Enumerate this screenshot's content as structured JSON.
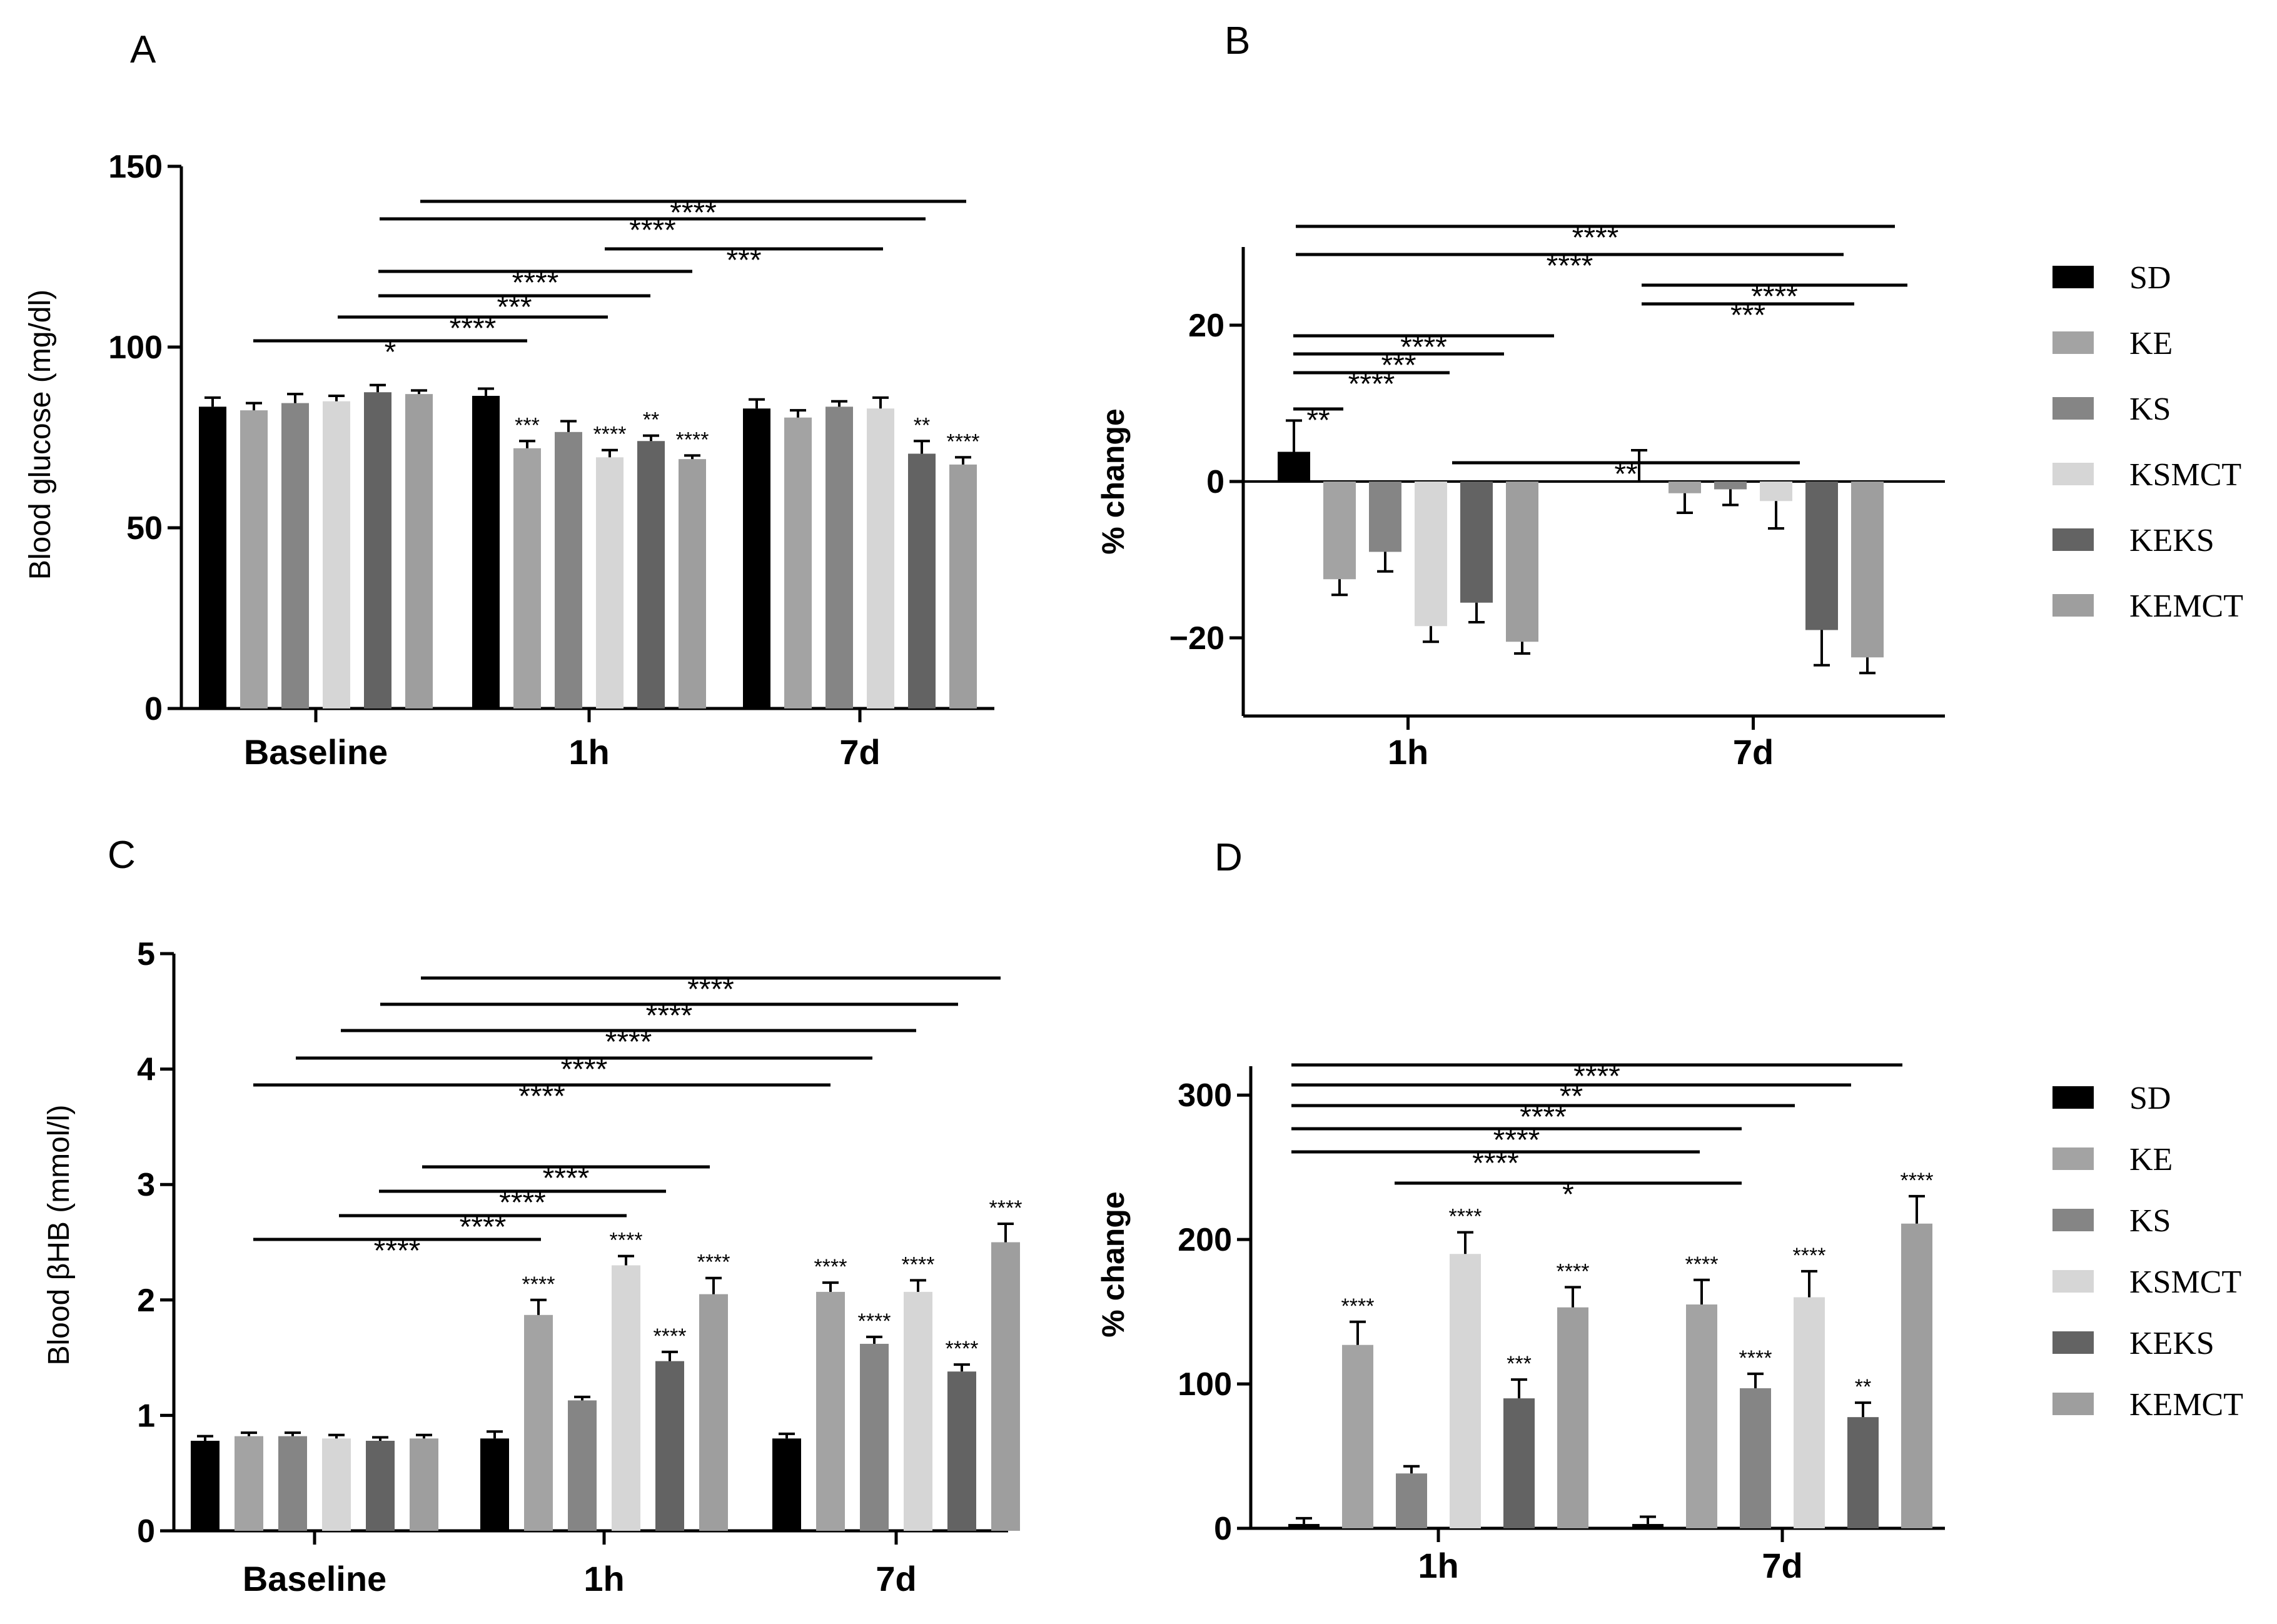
{
  "groups": [
    {
      "name": "SD",
      "color": "#000000"
    },
    {
      "name": "KE",
      "color": "#a3a3a3"
    },
    {
      "name": "KS",
      "color": "#858585"
    },
    {
      "name": "KSMCT",
      "color": "#d6d6d6"
    },
    {
      "name": "KEKS",
      "color": "#636363"
    },
    {
      "name": "KEMCT",
      "color": "#9e9e9e"
    }
  ],
  "chart_data": [
    {
      "panel": "A",
      "type": "bar",
      "ylabel": "Blood glucose (mg/dl)",
      "xlabel": "",
      "ylim": [
        0,
        150
      ],
      "yticks": [
        "0",
        "50",
        "100",
        "150"
      ],
      "categories": [
        "Baseline",
        "1h",
        "7d"
      ],
      "series": [
        {
          "name": "SD",
          "values": [
            83.5,
            86.5,
            83.0
          ],
          "errors": [
            2.5,
            2.0,
            2.5
          ],
          "stars": [
            "",
            "",
            ""
          ]
        },
        {
          "name": "KE",
          "values": [
            82.5,
            72.0,
            80.5
          ],
          "errors": [
            2.0,
            2.0,
            2.0
          ],
          "stars": [
            "",
            "***",
            ""
          ]
        },
        {
          "name": "KS",
          "values": [
            84.5,
            76.5,
            83.5
          ],
          "errors": [
            2.5,
            3.0,
            1.5
          ],
          "stars": [
            "",
            "",
            ""
          ]
        },
        {
          "name": "KSMCT",
          "values": [
            85.0,
            69.5,
            83.0
          ],
          "errors": [
            1.5,
            2.0,
            3.0
          ],
          "stars": [
            "",
            "****",
            ""
          ]
        },
        {
          "name": "KEKS",
          "values": [
            87.5,
            74.0,
            70.5
          ],
          "errors": [
            2.0,
            1.5,
            3.5
          ],
          "stars": [
            "",
            "**",
            "**"
          ]
        },
        {
          "name": "KEMCT",
          "values": [
            87.0,
            69.0,
            67.5
          ],
          "errors": [
            1.0,
            1.0,
            2.0
          ],
          "stars": [
            "",
            "****",
            "****"
          ]
        }
      ],
      "comparisons": [
        {
          "from": [
            0,
            5
          ],
          "to": [
            2,
            5
          ],
          "label": "****"
        },
        {
          "from": [
            0,
            4
          ],
          "to": [
            2,
            4
          ],
          "label": "****"
        },
        {
          "from": [
            1,
            1
          ],
          "to": [
            2,
            3
          ],
          "label": "***"
        },
        {
          "from": [
            0,
            4
          ],
          "to": [
            1,
            5
          ],
          "label": "****"
        },
        {
          "from": [
            0,
            3
          ],
          "to": [
            1,
            4
          ],
          "label": "***"
        },
        {
          "from": [
            0,
            2
          ],
          "to": [
            1,
            3
          ],
          "label": "****"
        },
        {
          "from": [
            0,
            1
          ],
          "to": [
            1,
            1
          ],
          "label": "*"
        }
      ]
    },
    {
      "panel": "B",
      "type": "bar",
      "ylabel": "% change",
      "xlabel": "",
      "ylim": [
        -30,
        30
      ],
      "yticks": [
        "−20",
        "0",
        "20"
      ],
      "categories": [
        "1h",
        "7d"
      ],
      "series": [
        {
          "name": "SD",
          "values": [
            3.8,
            0.0
          ],
          "errors": [
            4.0,
            4.0
          ]
        },
        {
          "name": "KE",
          "values": [
            -12.5,
            -1.5
          ],
          "errors": [
            2.0,
            2.5
          ]
        },
        {
          "name": "KS",
          "values": [
            -9.0,
            -1.0
          ],
          "errors": [
            2.5,
            2.0
          ]
        },
        {
          "name": "KSMCT",
          "values": [
            -18.5,
            -2.5
          ],
          "errors": [
            2.0,
            3.5
          ]
        },
        {
          "name": "KEKS",
          "values": [
            -15.5,
            -19.0
          ],
          "errors": [
            2.5,
            4.5
          ]
        },
        {
          "name": "KEMCT",
          "values": [
            -20.5,
            -22.5
          ],
          "errors": [
            1.5,
            2.0
          ]
        }
      ],
      "comparisons": [
        {
          "from": [
            0,
            0
          ],
          "to": [
            1,
            5
          ],
          "label": "****"
        },
        {
          "from": [
            0,
            0
          ],
          "to": [
            1,
            4
          ],
          "label": "****"
        },
        {
          "from": [
            1,
            0
          ],
          "to": [
            1,
            5
          ],
          "label": "****"
        },
        {
          "from": [
            1,
            0
          ],
          "to": [
            1,
            4
          ],
          "label": "***"
        },
        {
          "from": [
            0,
            0
          ],
          "to": [
            0,
            5
          ],
          "label": "****"
        },
        {
          "from": [
            0,
            0
          ],
          "to": [
            0,
            4
          ],
          "label": "***"
        },
        {
          "from": [
            0,
            0
          ],
          "to": [
            0,
            3
          ],
          "label": "****"
        },
        {
          "from": [
            0,
            0
          ],
          "to": [
            0,
            1
          ],
          "label": "**"
        },
        {
          "from": [
            0,
            3
          ],
          "to": [
            1,
            3
          ],
          "label": "**"
        }
      ]
    },
    {
      "panel": "C",
      "type": "bar",
      "ylabel": "Blood βHB (mmol/l)",
      "xlabel": "",
      "ylim": [
        0,
        5
      ],
      "yticks": [
        "0",
        "1",
        "2",
        "3",
        "4",
        "5"
      ],
      "categories": [
        "Baseline",
        "1h",
        "7d"
      ],
      "series": [
        {
          "name": "SD",
          "values": [
            0.78,
            0.8,
            0.8
          ],
          "errors": [
            0.04,
            0.06,
            0.04
          ],
          "stars": [
            "",
            "",
            ""
          ]
        },
        {
          "name": "KE",
          "values": [
            0.82,
            1.87,
            2.07
          ],
          "errors": [
            0.03,
            0.13,
            0.08
          ],
          "stars": [
            "",
            "****",
            "****"
          ]
        },
        {
          "name": "KS",
          "values": [
            0.82,
            1.13,
            1.62
          ],
          "errors": [
            0.03,
            0.03,
            0.06
          ],
          "stars": [
            "",
            "",
            "****"
          ]
        },
        {
          "name": "KSMCT",
          "values": [
            0.8,
            2.3,
            2.07
          ],
          "errors": [
            0.03,
            0.08,
            0.1
          ],
          "stars": [
            "",
            "****",
            "****"
          ]
        },
        {
          "name": "KEKS",
          "values": [
            0.78,
            1.47,
            1.38
          ],
          "errors": [
            0.03,
            0.08,
            0.06
          ],
          "stars": [
            "",
            "****",
            "****"
          ]
        },
        {
          "name": "KEMCT",
          "values": [
            0.8,
            2.05,
            2.5
          ],
          "errors": [
            0.03,
            0.14,
            0.16
          ],
          "stars": [
            "",
            "****",
            "****"
          ]
        }
      ],
      "comparisons": [
        {
          "from": [
            0,
            5
          ],
          "to": [
            2,
            5
          ],
          "label": "****"
        },
        {
          "from": [
            0,
            4
          ],
          "to": [
            2,
            4
          ],
          "label": "****"
        },
        {
          "from": [
            0,
            3
          ],
          "to": [
            2,
            3
          ],
          "label": "****"
        },
        {
          "from": [
            0,
            2
          ],
          "to": [
            2,
            2
          ],
          "label": "****"
        },
        {
          "from": [
            0,
            1
          ],
          "to": [
            2,
            1
          ],
          "label": "****"
        },
        {
          "from": [
            0,
            5
          ],
          "to": [
            1,
            5
          ],
          "label": "****"
        },
        {
          "from": [
            0,
            4
          ],
          "to": [
            1,
            4
          ],
          "label": "****"
        },
        {
          "from": [
            0,
            3
          ],
          "to": [
            1,
            3
          ],
          "label": "****"
        },
        {
          "from": [
            0,
            1
          ],
          "to": [
            1,
            1
          ],
          "label": "****"
        }
      ]
    },
    {
      "panel": "D",
      "type": "bar",
      "ylabel": "% change",
      "xlabel": "",
      "ylim": [
        0,
        320
      ],
      "yticks": [
        "0",
        "100",
        "200",
        "300"
      ],
      "categories": [
        "1h",
        "7d"
      ],
      "series": [
        {
          "name": "SD",
          "values": [
            3,
            3
          ],
          "errors": [
            4,
            5
          ],
          "stars": [
            "",
            ""
          ]
        },
        {
          "name": "KE",
          "values": [
            127,
            155
          ],
          "errors": [
            16,
            17
          ],
          "stars": [
            "****",
            "****"
          ]
        },
        {
          "name": "KS",
          "values": [
            38,
            97
          ],
          "errors": [
            5,
            10
          ],
          "stars": [
            "",
            "****"
          ]
        },
        {
          "name": "KSMCT",
          "values": [
            190,
            160
          ],
          "errors": [
            15,
            18
          ],
          "stars": [
            "****",
            "****"
          ]
        },
        {
          "name": "KEKS",
          "values": [
            90,
            77
          ],
          "errors": [
            13,
            10
          ],
          "stars": [
            "***",
            "**"
          ]
        },
        {
          "name": "KEMCT",
          "values": [
            153,
            211
          ],
          "errors": [
            14,
            19
          ],
          "stars": [
            "****",
            "****"
          ]
        }
      ],
      "comparisons": [
        {
          "from": [
            0,
            0
          ],
          "to": [
            1,
            5
          ],
          "label": "****"
        },
        {
          "from": [
            0,
            0
          ],
          "to": [
            1,
            4
          ],
          "label": "**"
        },
        {
          "from": [
            0,
            0
          ],
          "to": [
            1,
            3
          ],
          "label": "****"
        },
        {
          "from": [
            0,
            0
          ],
          "to": [
            1,
            2
          ],
          "label": "****"
        },
        {
          "from": [
            0,
            0
          ],
          "to": [
            1,
            1
          ],
          "label": "****"
        },
        {
          "from": [
            0,
            2
          ],
          "to": [
            1,
            2
          ],
          "label": "*"
        }
      ]
    }
  ]
}
